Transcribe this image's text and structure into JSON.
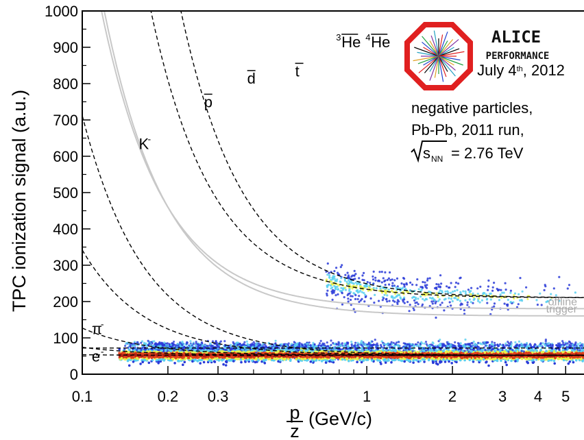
{
  "chart_data": {
    "type": "scatter",
    "xlabel": {
      "numerator": "p",
      "denominator": "z",
      "unit": "(GeV/c)"
    },
    "ylabel": "TPC ionization signal (a.u.)",
    "xscale": "log",
    "xlim": [
      0.1,
      5.8
    ],
    "ylim": [
      0,
      1000
    ],
    "xticks": [
      {
        "value": 0.1,
        "label": "0.1"
      },
      {
        "value": 0.2,
        "label": "0.2"
      },
      {
        "value": 0.3,
        "label": "0.3"
      },
      {
        "value": 1,
        "label": "1"
      },
      {
        "value": 2,
        "label": "2"
      },
      {
        "value": 3,
        "label": "3"
      },
      {
        "value": 4,
        "label": "4"
      },
      {
        "value": 5,
        "label": "5"
      }
    ],
    "yticks": [
      0,
      100,
      200,
      300,
      400,
      500,
      600,
      700,
      800,
      900,
      1000
    ],
    "species": [
      {
        "name": "e⁻",
        "base": 72,
        "coef": 0.0
      },
      {
        "name": "π⁻",
        "base": 52,
        "coef": 0.016
      },
      {
        "name": "K⁻",
        "base": 52,
        "coef": 0.22
      },
      {
        "name": "p̅",
        "base": 52,
        "coef": 0.75
      },
      {
        "name": "d̅",
        "base": 52,
        "coef": 2.9
      },
      {
        "name": "t̅",
        "base": 52,
        "coef": 6.6
      },
      {
        "name": "³He̅",
        "base": 210,
        "coef": 24.0
      },
      {
        "name": "⁴He̅",
        "base": 210,
        "coef": 39.0
      }
    ],
    "trigger_lines": [
      {
        "label": "offline",
        "base": 180,
        "coef": 11.2
      },
      {
        "label": "trigger",
        "base": 160,
        "coef": 12.0
      }
    ],
    "annotations": {
      "logo": "ALICE",
      "logo_sub": "PERFORMANCE",
      "date": "July 4th, 2012",
      "line1": "negative particles,",
      "line2": "Pb-Pb, 2011 run,",
      "line3": "= 2.76 TeV",
      "sqrt_label": "s",
      "sqrt_sub": "NN"
    },
    "curve_labels": [
      {
        "text": "K",
        "sup": "-",
        "x": 0.158,
        "y": 620
      },
      {
        "text": "p",
        "bar": true,
        "x": 0.268,
        "y": 735
      },
      {
        "text": "d",
        "bar": true,
        "x": 0.38,
        "y": 800
      },
      {
        "text": "t",
        "bar": true,
        "x": 0.56,
        "y": 820
      },
      {
        "text": "He",
        "presup": "3",
        "bar": true,
        "x": 0.78,
        "y": 900
      },
      {
        "text": "He",
        "presup": "4",
        "bar": true,
        "x": 0.99,
        "y": 900
      },
      {
        "text": "π",
        "sup": "-",
        "x": 0.108,
        "y": 110
      },
      {
        "text": "e",
        "sup": "-",
        "x": 0.108,
        "y": 35
      }
    ],
    "colors": {
      "low": "#2a3bd8",
      "mid": "#5ad0f0",
      "high": "#e8f04a",
      "peak": "#e0401c",
      "dense": "#b01e10",
      "line": "#000000",
      "trigger": "#c8c8c8"
    },
    "grid": false,
    "legend": "top-right"
  }
}
